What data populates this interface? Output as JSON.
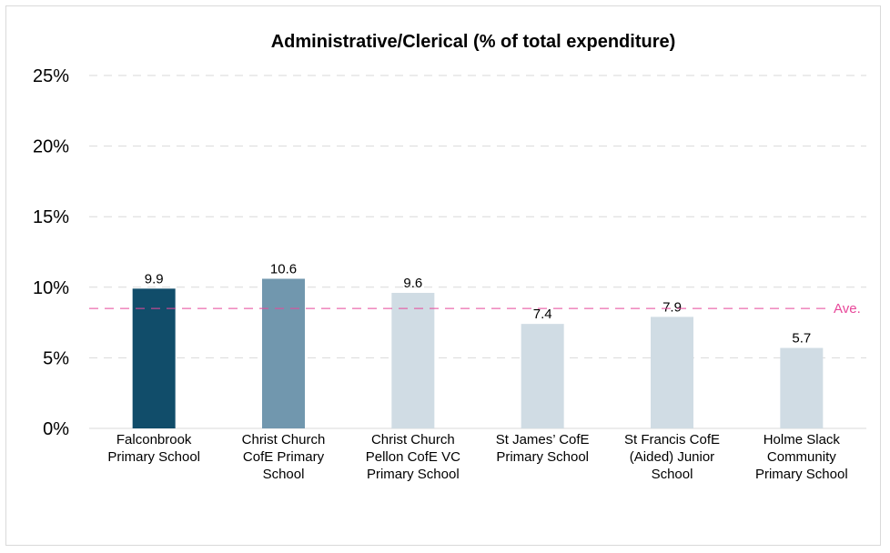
{
  "chart_data": {
    "type": "bar",
    "title": "Administrative/Clerical (% of total expenditure)",
    "xlabel": "",
    "ylabel": "",
    "ylim": [
      0,
      25
    ],
    "y_ticks": [
      "0%",
      "5%",
      "10%",
      "15%",
      "20%",
      "25%"
    ],
    "y_tick_values": [
      0,
      5,
      10,
      15,
      20,
      25
    ],
    "categories": [
      [
        "Falconbrook",
        "Primary School"
      ],
      [
        "Christ Church",
        "CofE Primary",
        "School"
      ],
      [
        "Christ Church",
        "Pellon CofE VC",
        "Primary School"
      ],
      [
        "St James’ CofE",
        "Primary School"
      ],
      [
        "St Francis CofE",
        "(Aided) Junior",
        "School"
      ],
      [
        "Holme Slack",
        "Community",
        "Primary School"
      ]
    ],
    "values": [
      9.9,
      10.6,
      9.6,
      7.4,
      7.9,
      5.7
    ],
    "data_labels": [
      "9.9",
      "10.6",
      "9.6",
      "7.4",
      "7.9",
      "5.7"
    ],
    "bar_colors": [
      "#114d6a",
      "#7197ae",
      "#d0dce4",
      "#d0dce4",
      "#d0dce4",
      "#d0dce4"
    ],
    "average": {
      "label": "Ave.",
      "value": 8.5,
      "color": "#e8489a"
    },
    "grid": true,
    "legend": "none"
  }
}
